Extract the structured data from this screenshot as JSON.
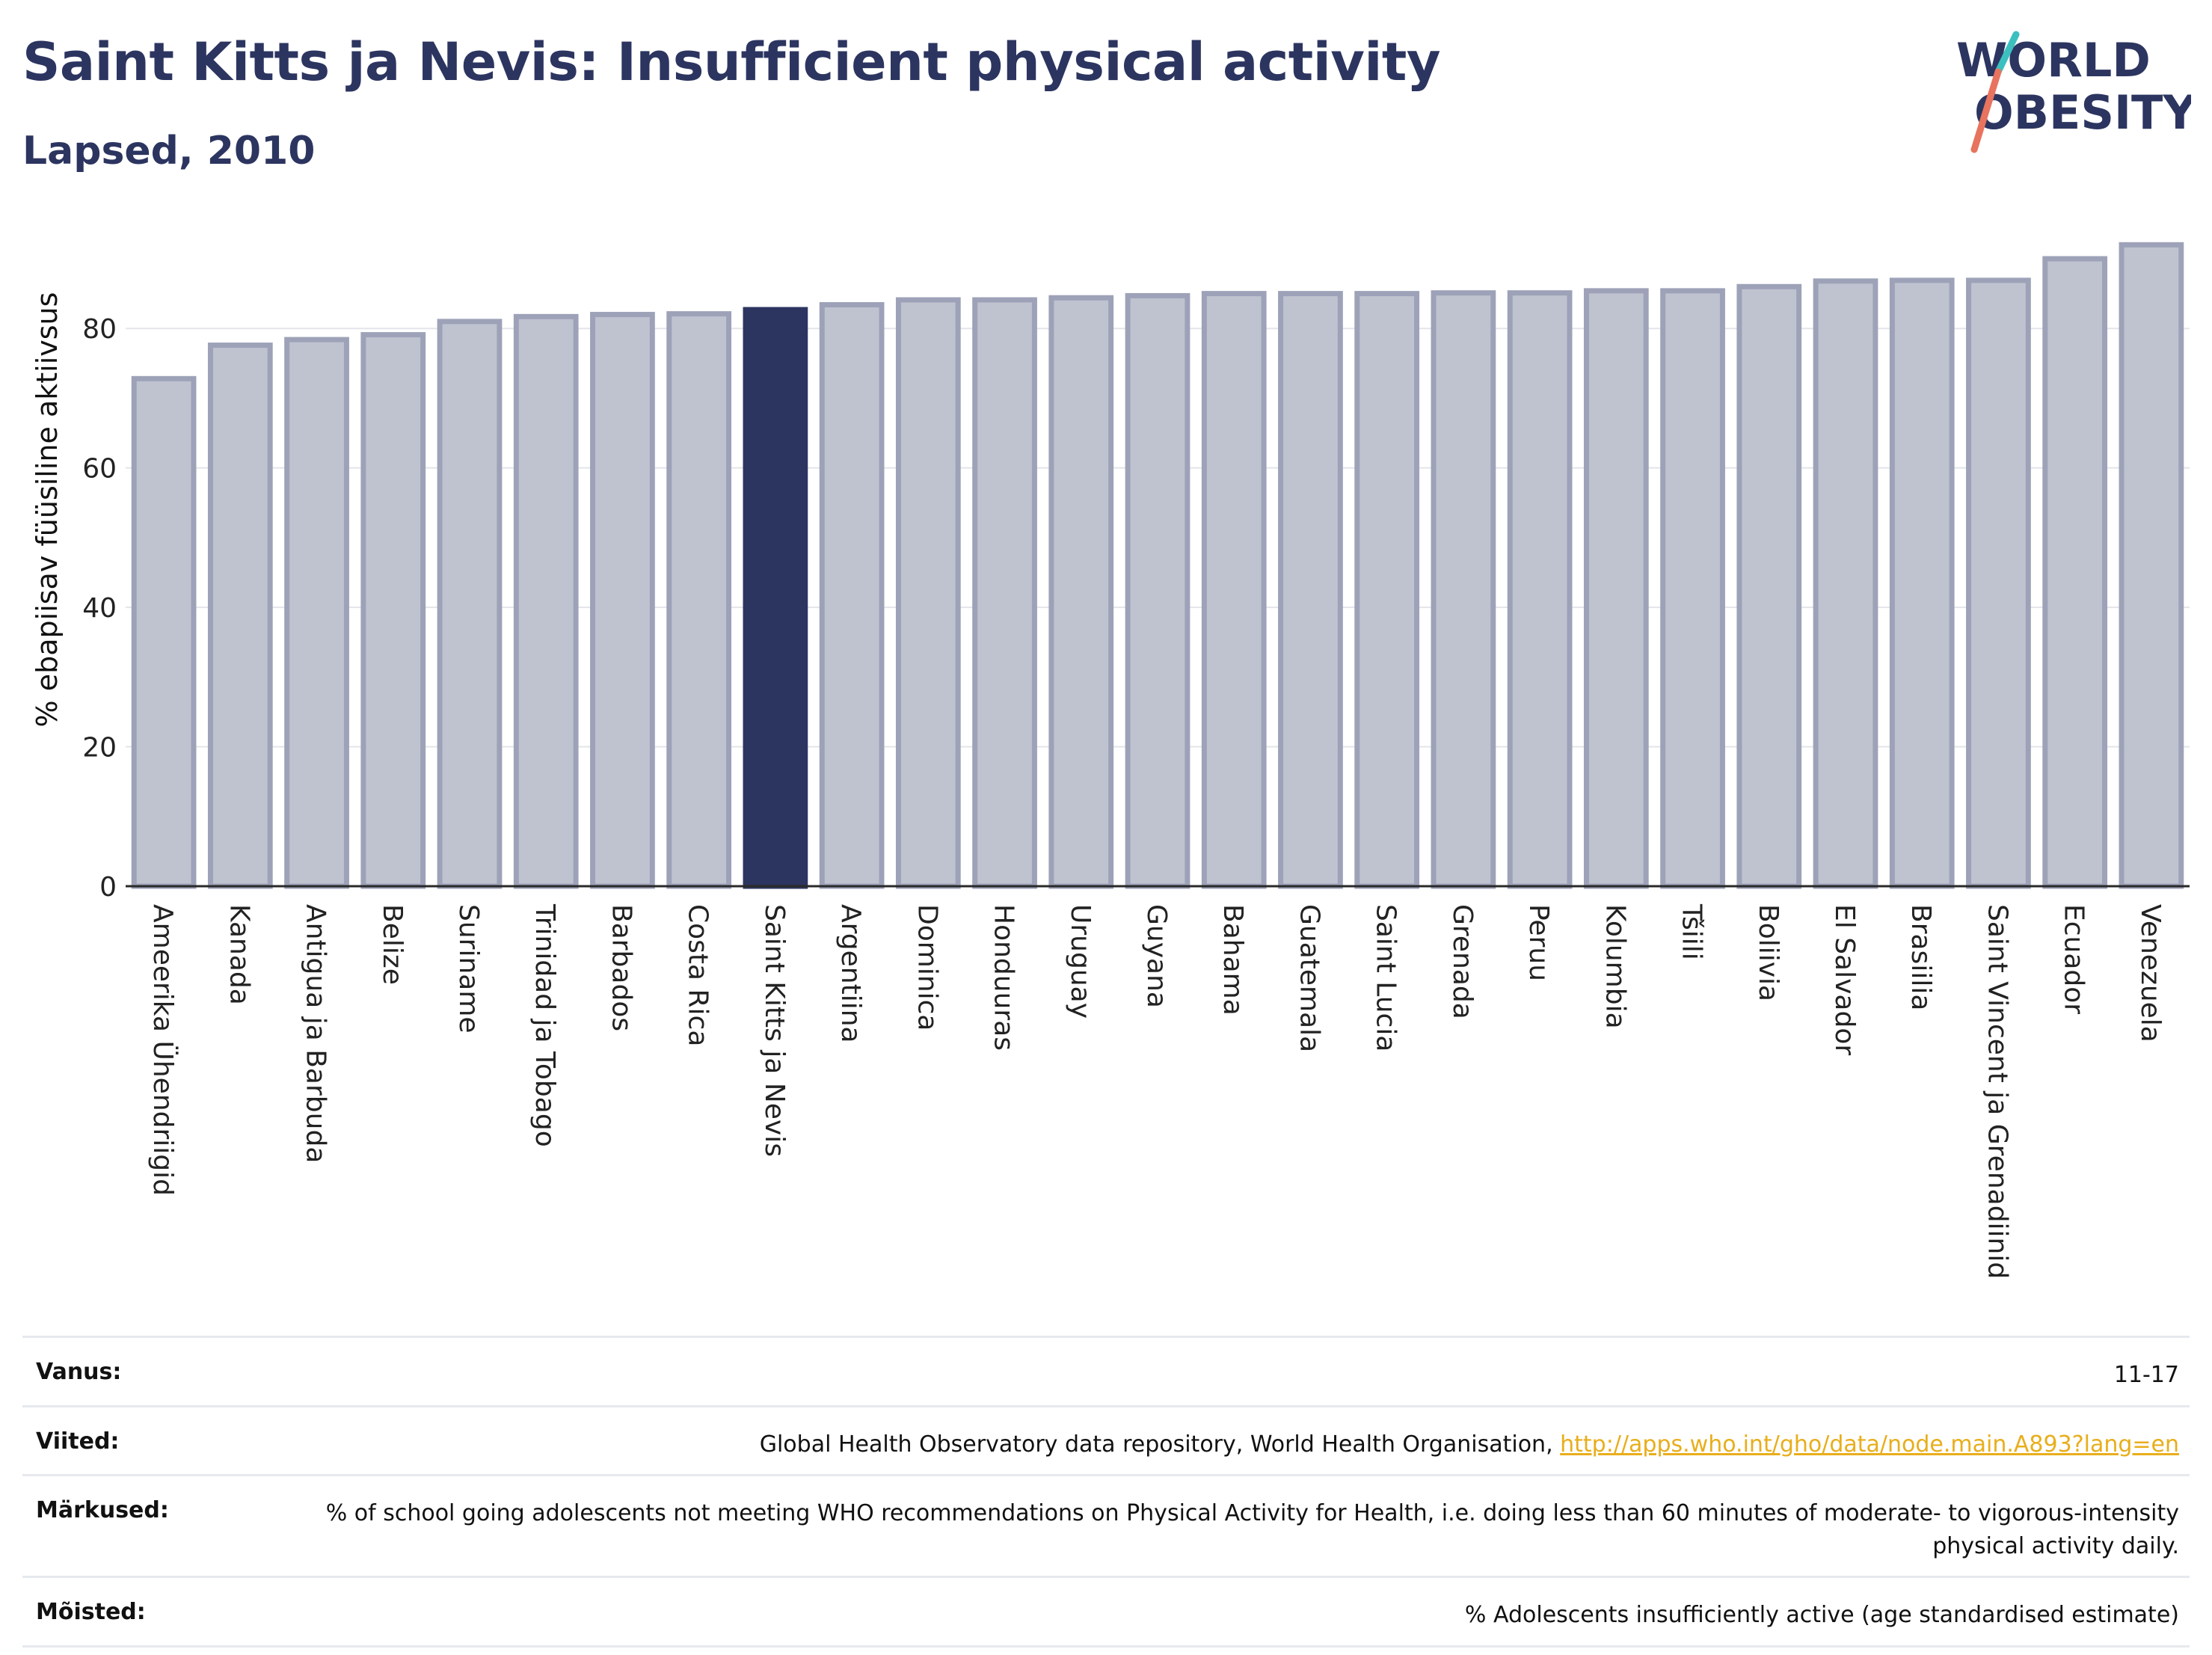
{
  "header": {
    "title": "Saint Kitts ja Nevis: Insufficient physical activity",
    "subtitle": "Lapsed, 2010",
    "logo_line1": "WORLD",
    "logo_line2": "OBESITY"
  },
  "colors": {
    "highlight": "#2c3560",
    "bar_fill": "#bfc3d0",
    "bar_stroke": "#9da2b8",
    "logo_teal": "#3cbfbf",
    "logo_coral": "#e8735e",
    "link": "#e8ae1b"
  },
  "chart_data": {
    "type": "bar",
    "ylabel": "% ebapiisav füüsiline aktiivsus",
    "ylim": [
      0,
      93
    ],
    "yticks": [
      0,
      20,
      40,
      60,
      80
    ],
    "grid": true,
    "highlight_category": "Saint Kitts ja Nevis",
    "categories": [
      "Ameerika Ühendriigid",
      "Kanada",
      "Antigua ja Barbuda",
      "Belize",
      "Suriname",
      "Trinidad ja Tobago",
      "Barbados",
      "Costa Rica",
      "Saint Kitts ja Nevis",
      "Argentiina",
      "Dominica",
      "Honduuras",
      "Uruguay",
      "Guyana",
      "Bahama",
      "Guatemala",
      "Saint Lucia",
      "Grenada",
      "Peruu",
      "Kolumbia",
      "Tšiili",
      "Boliivia",
      "El Salvador",
      "Brasiilia",
      "Saint Vincent ja Grenadiinid",
      "Ecuador",
      "Venezuela"
    ],
    "values": [
      72.8,
      77.6,
      78.4,
      79.1,
      81.0,
      81.7,
      82.0,
      82.1,
      82.7,
      83.4,
      84.1,
      84.1,
      84.4,
      84.7,
      85.0,
      85.0,
      85.0,
      85.1,
      85.1,
      85.4,
      85.4,
      86.0,
      86.8,
      86.9,
      86.9,
      90.0,
      92.0
    ]
  },
  "meta": {
    "vanus_label": "Vanus:",
    "vanus_value": "11-17",
    "viited_label": "Viited:",
    "viited_text": "Global Health Observatory data repository, World Health Organisation, ",
    "viited_link": "http://apps.who.int/gho/data/node.main.A893?lang=en",
    "markused_label": "Märkused:",
    "markused_value": "% of school going adolescents not meeting WHO recommendations on Physical Activity for Health, i.e. doing less than 60 minutes of moderate- to vigorous-intensity physical activity daily.",
    "moisted_label": "Mõisted:",
    "moisted_value": "% Adolescents insufficiently active (age standardised estimate)"
  }
}
